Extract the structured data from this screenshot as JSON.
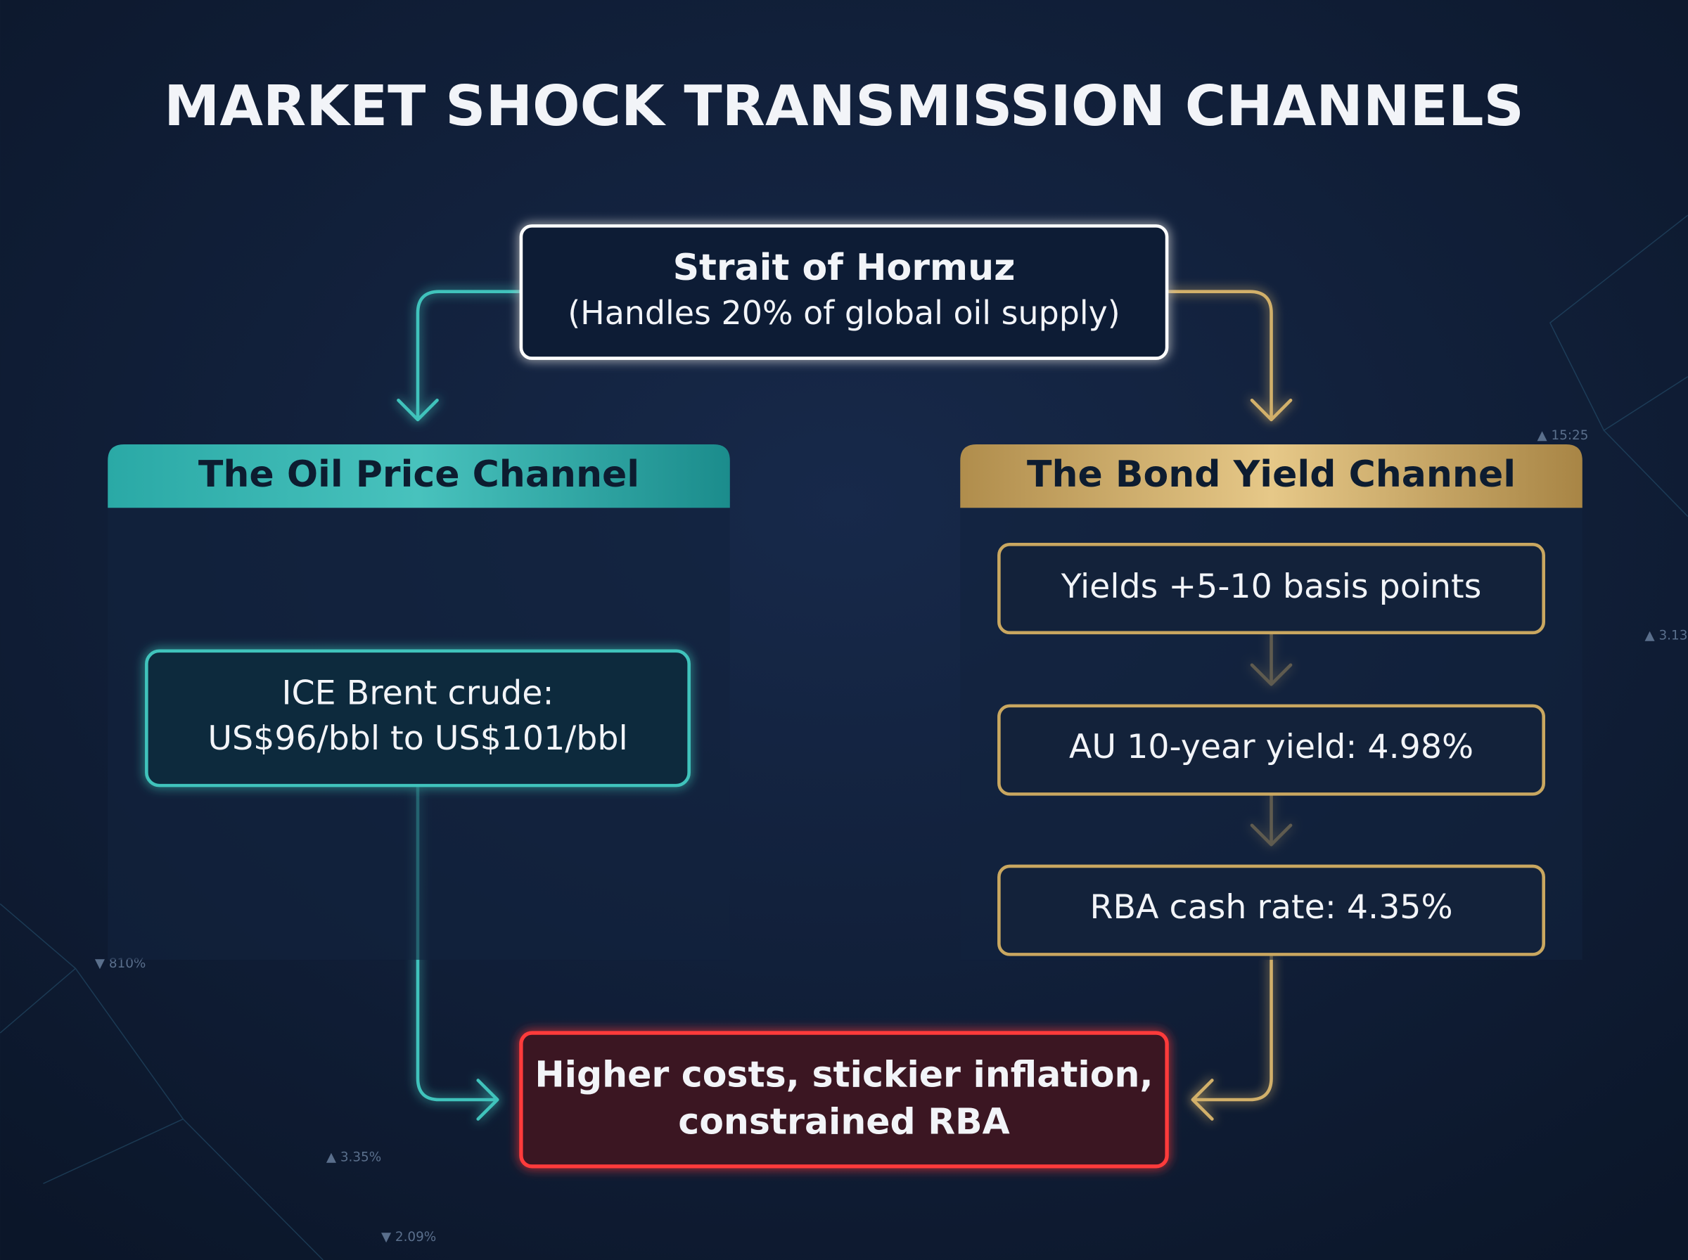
{
  "header": {
    "title": "MARKET SHOCK TRANSMISSION CHANNELS"
  },
  "source": {
    "lines": [
      "Strait of Hormuz",
      "(Handles 20% of global oil supply)"
    ]
  },
  "channels": [
    {
      "title": "The Oil Price Channel",
      "boxes": [
        {
          "lines": [
            "ICE Brent crude:",
            "US$96/bbl to US$101/bbl"
          ]
        }
      ]
    },
    {
      "title": "The Bond Yield Channel",
      "boxes": [
        {
          "lines": [
            "Yields +5-10 basis points"
          ]
        },
        {
          "lines": [
            "AU 10-year yield: 4.98%"
          ]
        },
        {
          "lines": [
            "RBA cash rate: 4.35%"
          ]
        }
      ]
    }
  ],
  "outcome": {
    "lines": [
      "Higher costs, stickier inflation,",
      "constrained RBA"
    ]
  },
  "background_labels": [
    "▼ 810%",
    "▲ 3.35%",
    "▼ 2.09%",
    "▲ 15:25",
    "▲ 3.13"
  ]
}
